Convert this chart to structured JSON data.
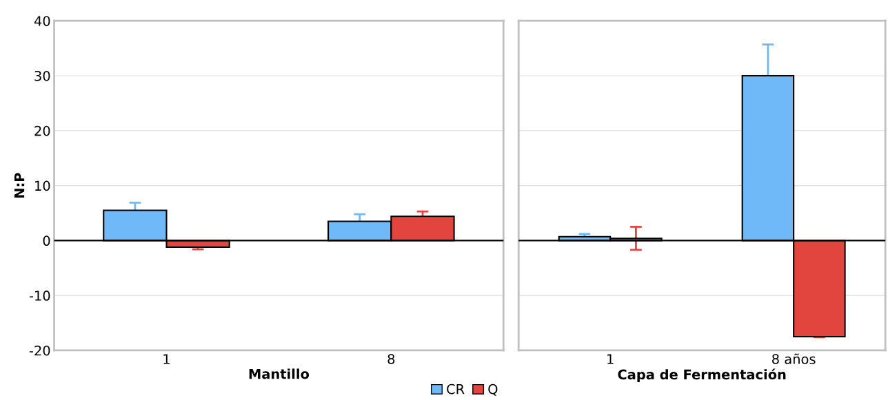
{
  "chart_data": [
    {
      "type": "bar",
      "xlabel": "Mantillo",
      "ylabel": "N:P",
      "categories": [
        "1",
        "8"
      ],
      "ylim": [
        -20,
        40
      ],
      "yticks": [
        -20,
        -10,
        0,
        10,
        20,
        30,
        40
      ],
      "grid": "y",
      "legend": "bottom",
      "series": [
        {
          "name": "CR",
          "color": "#6fb9f8",
          "values": [
            5.5,
            3.5
          ],
          "errors": [
            1.4,
            1.3
          ]
        },
        {
          "name": "Q",
          "color": "#e2443e",
          "values": [
            -1.2,
            4.4
          ],
          "errors": [
            0.4,
            0.9
          ]
        }
      ]
    },
    {
      "type": "bar",
      "xlabel": "Capa de Fermentación",
      "categories": [
        "1",
        "8 años"
      ],
      "ylim": [
        -20,
        40
      ],
      "yticks": [
        -20,
        -10,
        0,
        10,
        20,
        30,
        40
      ],
      "grid": "y",
      "tick_labels": "x",
      "series": [
        {
          "color": "#6fb9f8",
          "values": [
            0.7,
            30
          ],
          "errors": [
            0.5,
            5.7
          ]
        },
        {
          "color": "#e2443e",
          "values": [
            0.4,
            -17.5
          ],
          "errors": [
            2.1,
            0.1
          ]
        }
      ]
    }
  ]
}
